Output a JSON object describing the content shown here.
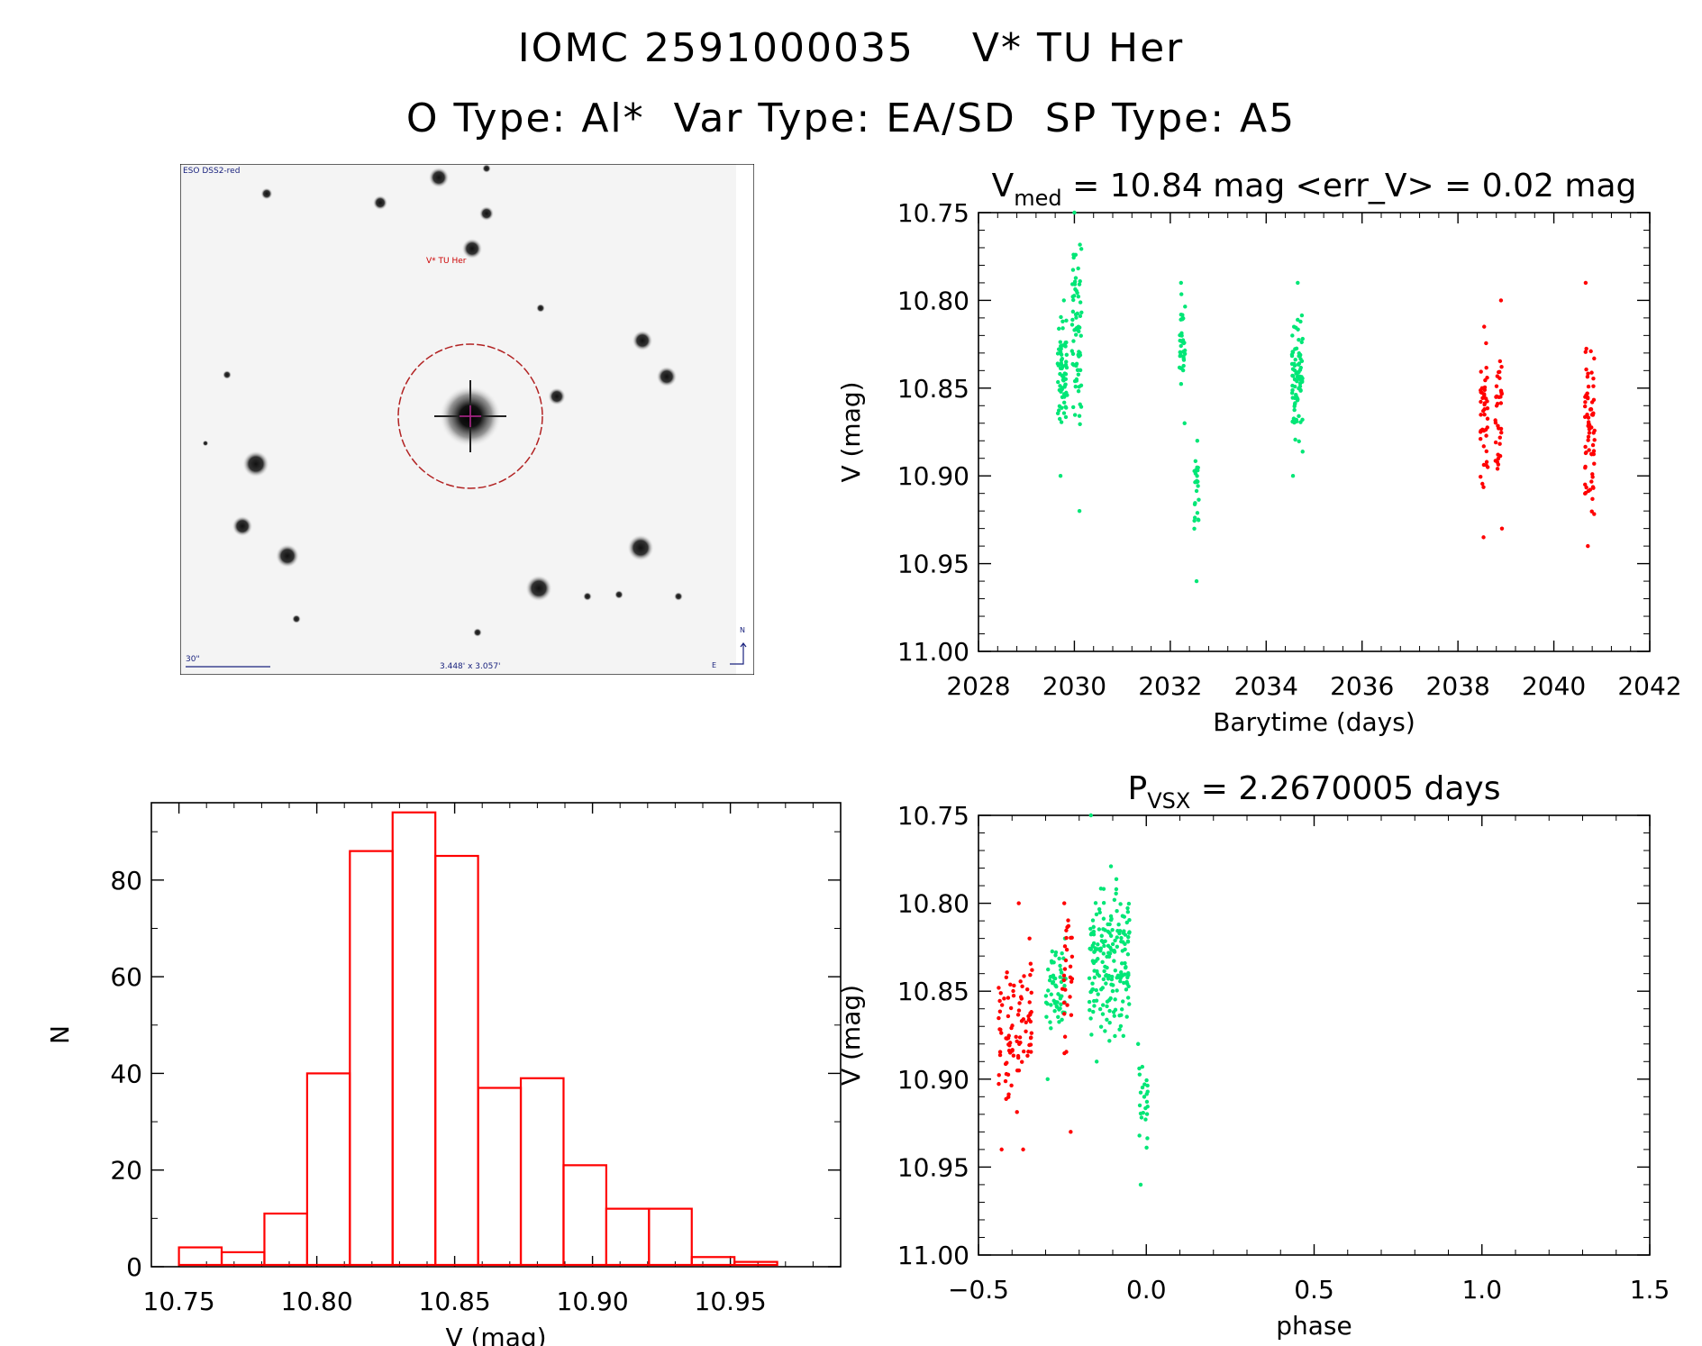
{
  "header": {
    "title_line1": "IOMC 2591000035    V* TU Her",
    "title_line2": "O Type: Al*  Var Type: EA/SD  SP Type: A5"
  },
  "finder": {
    "survey_label": "ESO DSS2-red",
    "target_label": "V* TU Her",
    "scale_label": "30\"",
    "fov_label": "3.448' x 3.057'",
    "north_label": "N",
    "east_label": "E"
  },
  "colors": {
    "green": "#00e676",
    "red": "#ff0000",
    "hist": "#ff0000"
  },
  "chart_data": [
    {
      "type": "scatter",
      "title_main": "V",
      "title_sub": "med",
      "title_rest": " =  10.84 mag <err_V> = 0.02 mag",
      "xlabel": "Barytime (days)",
      "ylabel": "V (mag)",
      "xlim": [
        2028,
        2042
      ],
      "ylim": [
        11.0,
        10.75
      ],
      "xticks": [
        "2028",
        "2030",
        "2032",
        "2034",
        "2036",
        "2038",
        "2040",
        "2042"
      ],
      "yticks": [
        "10.75",
        "10.80",
        "10.85",
        "10.90",
        "10.95",
        "11.00"
      ],
      "series": [
        {
          "name": "green",
          "clusters": [
            {
              "x": 2029.75,
              "dx": 0.1,
              "ymin": 10.8,
              "ymax": 10.9,
              "center": 10.84,
              "n": 70
            },
            {
              "x": 2030.05,
              "dx": 0.1,
              "ymin": 10.75,
              "ymax": 10.92,
              "center": 10.82,
              "n": 70
            },
            {
              "x": 2032.25,
              "dx": 0.06,
              "ymin": 10.79,
              "ymax": 10.87,
              "center": 10.82,
              "n": 35
            },
            {
              "x": 2032.55,
              "dx": 0.05,
              "ymin": 10.88,
              "ymax": 10.96,
              "center": 10.91,
              "n": 25
            },
            {
              "x": 2034.65,
              "dx": 0.12,
              "ymin": 10.79,
              "ymax": 10.9,
              "center": 10.845,
              "n": 85
            }
          ]
        },
        {
          "name": "red",
          "clusters": [
            {
              "x": 2038.55,
              "dx": 0.08,
              "ymin": 10.815,
              "ymax": 10.935,
              "center": 10.87,
              "n": 45
            },
            {
              "x": 2038.85,
              "dx": 0.07,
              "ymin": 10.8,
              "ymax": 10.93,
              "center": 10.86,
              "n": 35
            },
            {
              "x": 2040.75,
              "dx": 0.1,
              "ymin": 10.79,
              "ymax": 10.94,
              "center": 10.875,
              "n": 70
            }
          ]
        }
      ]
    },
    {
      "type": "bar",
      "xlabel": "V (mag)",
      "ylabel": "N",
      "xlim": [
        10.74,
        10.99
      ],
      "ylim": [
        0,
        96
      ],
      "xticks": [
        "10.75",
        "10.80",
        "10.85",
        "10.90",
        "10.95"
      ],
      "yticks": [
        "0",
        "20",
        "40",
        "60",
        "80"
      ],
      "bin_start": 10.75,
      "bin_width": 0.0155,
      "values": [
        4,
        3,
        11,
        40,
        86,
        94,
        85,
        37,
        39,
        21,
        12,
        12,
        2,
        1
      ]
    },
    {
      "type": "scatter",
      "title_main": "P",
      "title_sub": "VSX",
      "title_rest": " =  2.2670005 days",
      "xlabel": "phase",
      "ylabel": "V (mag)",
      "xlim": [
        -0.5,
        1.5
      ],
      "ylim": [
        11.0,
        10.75
      ],
      "xticks": [
        "−0.5",
        "0.0",
        "0.5",
        "1.0",
        "1.5"
      ],
      "yticks": [
        "10.75",
        "10.80",
        "10.85",
        "10.90",
        "10.95",
        "11.00"
      ],
      "series": [
        {
          "name": "green",
          "clusters": [
            {
              "x": -0.27,
              "dx": 0.03,
              "ymin": 10.82,
              "ymax": 10.9,
              "center": 10.85,
              "n": 60
            },
            {
              "x": -0.11,
              "dx": 0.06,
              "ymin": 10.75,
              "ymax": 10.89,
              "center": 10.83,
              "n": 190
            },
            {
              "x": -0.01,
              "dx": 0.015,
              "ymin": 10.88,
              "ymax": 10.96,
              "center": 10.91,
              "n": 25
            }
          ]
        },
        {
          "name": "red",
          "clusters": [
            {
              "x": -0.41,
              "dx": 0.03,
              "ymin": 10.8,
              "ymax": 10.94,
              "center": 10.875,
              "n": 55
            },
            {
              "x": -0.36,
              "dx": 0.02,
              "ymin": 10.82,
              "ymax": 10.94,
              "center": 10.87,
              "n": 40
            },
            {
              "x": -0.235,
              "dx": 0.015,
              "ymin": 10.8,
              "ymax": 10.93,
              "center": 10.845,
              "n": 30
            }
          ]
        }
      ]
    }
  ]
}
